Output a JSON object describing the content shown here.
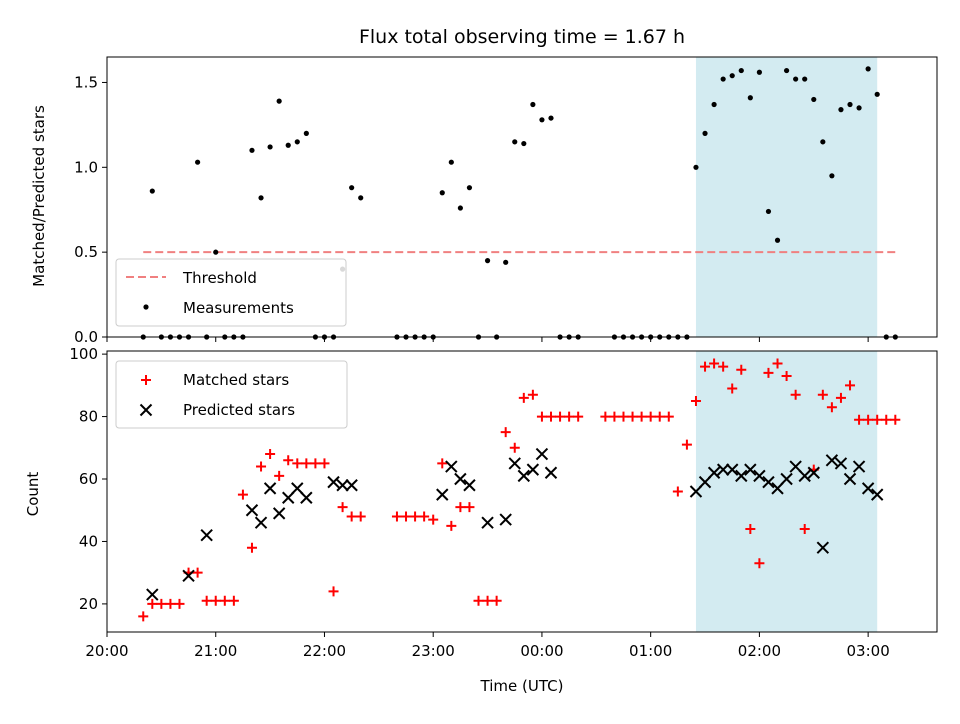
{
  "chart_data": [
    {
      "type": "scatter",
      "panel": "top",
      "title": "Flux total observing time = 1.67 h",
      "xlabel": "",
      "ylabel": "Matched/Predicted stars",
      "xlim": [
        "20:00",
        "03:38"
      ],
      "ylim": [
        0,
        1.65
      ],
      "yticks": [
        0.0,
        0.5,
        1.0,
        1.5
      ],
      "ytick_labels": [
        "0.0",
        "0.5",
        "1.0",
        "1.5"
      ],
      "grid": false,
      "legend_position": "lower-left",
      "highlight_span": {
        "start": "01:25",
        "end": "03:05",
        "color": "#d3ebf1"
      },
      "series": [
        {
          "name": "Threshold",
          "kind": "dashed-line",
          "color": "#f08080",
          "x": [
            "20:20",
            "03:17"
          ],
          "y": [
            0.5,
            0.5
          ]
        },
        {
          "name": "Measurements",
          "kind": "dots",
          "color": "#000000",
          "x": [
            "20:20",
            "20:25",
            "20:30",
            "20:35",
            "20:40",
            "20:45",
            "20:50",
            "20:55",
            "21:00",
            "21:05",
            "21:10",
            "21:15",
            "21:20",
            "21:25",
            "21:30",
            "21:35",
            "21:40",
            "21:45",
            "21:50",
            "21:55",
            "22:00",
            "22:05",
            "22:10",
            "22:15",
            "22:20",
            "22:25",
            "22:30",
            "22:35",
            "22:40",
            "22:45",
            "22:50",
            "22:55",
            "23:00",
            "23:05",
            "23:10",
            "23:15",
            "23:20",
            "23:25",
            "23:30",
            "23:35",
            "23:40",
            "23:45",
            "23:50",
            "23:55",
            "00:00",
            "00:05",
            "00:10",
            "00:15",
            "00:20",
            "00:25",
            "00:30",
            "00:35",
            "00:40",
            "00:45",
            "00:50",
            "00:55",
            "01:00",
            "01:05",
            "01:10",
            "01:15",
            "01:20",
            "01:25",
            "01:30",
            "01:35",
            "01:40",
            "01:45",
            "01:50",
            "01:55",
            "02:00",
            "02:05",
            "02:10",
            "02:15",
            "02:20",
            "02:25",
            "02:30",
            "02:35",
            "02:40",
            "02:45",
            "02:50",
            "02:55",
            "03:00",
            "03:05",
            "03:10",
            "03:15"
          ],
          "y": [
            0,
            0.86,
            0,
            0,
            0,
            0,
            1.03,
            0,
            0.5,
            0,
            0,
            0,
            1.1,
            0.82,
            1.12,
            1.39,
            1.13,
            1.15,
            1.2,
            0,
            0,
            0,
            0.4,
            0.88,
            0.82,
            null,
            null,
            null,
            0,
            0,
            0,
            0,
            0,
            0.85,
            1.03,
            0.76,
            0.88,
            0,
            0.45,
            0,
            0.44,
            1.15,
            1.14,
            1.37,
            1.28,
            1.29,
            0,
            0,
            0,
            null,
            null,
            null,
            0,
            0,
            0,
            0,
            0,
            0,
            0,
            0,
            0,
            1.0,
            1.2,
            1.37,
            1.52,
            1.54,
            1.57,
            1.41,
            1.56,
            0.74,
            0.57,
            1.57,
            1.52,
            1.52,
            1.4,
            1.15,
            0.95,
            1.34,
            1.37,
            1.35,
            1.58,
            1.43,
            0,
            0
          ]
        }
      ]
    },
    {
      "type": "scatter",
      "panel": "bottom",
      "title": "",
      "xlabel": "Time (UTC)",
      "ylabel": "Count",
      "xlim": [
        "20:00",
        "03:38"
      ],
      "ylim": [
        11,
        101
      ],
      "yticks": [
        20,
        40,
        60,
        80,
        100
      ],
      "ytick_labels": [
        "20",
        "40",
        "60",
        "80",
        "100"
      ],
      "xticks": [
        "20:00",
        "21:00",
        "22:00",
        "23:00",
        "00:00",
        "01:00",
        "02:00",
        "03:00"
      ],
      "grid": false,
      "legend_position": "upper-left",
      "highlight_span": {
        "start": "01:25",
        "end": "03:05",
        "color": "#d3ebf1"
      },
      "series": [
        {
          "name": "Matched stars",
          "marker": "plus",
          "color": "#ff0000",
          "x": [
            "20:20",
            "20:25",
            "20:30",
            "20:35",
            "20:40",
            "20:45",
            "20:50",
            "20:55",
            "21:00",
            "21:05",
            "21:10",
            "21:15",
            "21:20",
            "21:25",
            "21:30",
            "21:35",
            "21:40",
            "21:45",
            "21:50",
            "21:55",
            "22:00",
            "22:05",
            "22:10",
            "22:15",
            "22:20",
            "22:40",
            "22:45",
            "22:50",
            "22:55",
            "23:00",
            "23:05",
            "23:10",
            "23:15",
            "23:20",
            "23:25",
            "23:30",
            "23:35",
            "23:40",
            "23:45",
            "23:50",
            "23:55",
            "00:00",
            "00:05",
            "00:10",
            "00:15",
            "00:20",
            "00:35",
            "00:40",
            "00:45",
            "00:50",
            "00:55",
            "01:00",
            "01:05",
            "01:10",
            "01:15",
            "01:20",
            "01:25",
            "01:30",
            "01:35",
            "01:40",
            "01:45",
            "01:50",
            "01:55",
            "02:00",
            "02:05",
            "02:10",
            "02:15",
            "02:20",
            "02:25",
            "02:30",
            "02:35",
            "02:40",
            "02:45",
            "02:50",
            "02:55",
            "03:00",
            "03:05",
            "03:10",
            "03:15"
          ],
          "y": [
            16,
            20,
            20,
            20,
            20,
            30,
            30,
            21,
            21,
            21,
            21,
            55,
            38,
            64,
            68,
            61,
            66,
            65,
            65,
            65,
            65,
            24,
            51,
            48,
            48,
            48,
            48,
            48,
            48,
            47,
            65,
            45,
            51,
            51,
            21,
            21,
            21,
            75,
            70,
            86,
            87,
            80,
            80,
            80,
            80,
            80,
            80,
            80,
            80,
            80,
            80,
            80,
            80,
            80,
            56,
            71,
            85,
            96,
            97,
            96,
            89,
            95,
            44,
            33,
            94,
            97,
            93,
            87,
            44,
            63,
            87,
            83,
            86,
            90,
            79,
            79,
            79,
            79,
            79
          ]
        },
        {
          "name": "Predicted stars",
          "marker": "x",
          "color": "#000000",
          "x": [
            "20:25",
            "20:45",
            "20:55",
            "21:20",
            "21:25",
            "21:30",
            "21:35",
            "21:40",
            "21:45",
            "21:50",
            "22:05",
            "22:10",
            "22:15",
            "23:05",
            "23:10",
            "23:15",
            "23:20",
            "23:30",
            "23:40",
            "23:45",
            "23:50",
            "23:55",
            "00:00",
            "00:05",
            "01:25",
            "01:30",
            "01:35",
            "01:40",
            "01:45",
            "01:50",
            "01:55",
            "02:00",
            "02:05",
            "02:10",
            "02:15",
            "02:20",
            "02:25",
            "02:30",
            "02:35",
            "02:40",
            "02:45",
            "02:50",
            "02:55",
            "03:00",
            "03:05"
          ],
          "y": [
            23,
            29,
            42,
            50,
            46,
            57,
            49,
            54,
            57,
            54,
            59,
            58,
            58,
            55,
            64,
            60,
            58,
            46,
            47,
            65,
            61,
            63,
            68,
            62,
            56,
            59,
            62,
            63,
            63,
            61,
            63,
            61,
            59,
            57,
            60,
            64,
            61,
            62,
            38,
            66,
            65,
            60,
            64,
            57,
            55
          ]
        }
      ]
    }
  ]
}
